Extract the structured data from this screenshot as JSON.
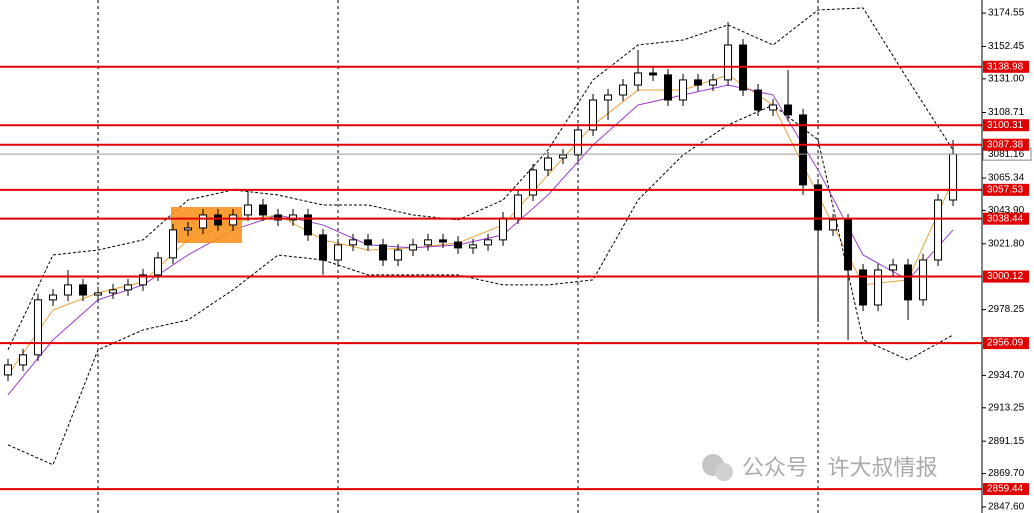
{
  "chart_data": {
    "type": "candlestick",
    "ylim": [
      2843.6,
      3183.2
    ],
    "xlim": [
      -0.533,
      64.93
    ],
    "xgrid": [
      6,
      22,
      38,
      54
    ],
    "yticks": [
      3174.55,
      3152.45,
      {
        "value": 3131,
        "label": "3131.00"
      },
      3108.71,
      3065.34,
      {
        "value": 3043.9,
        "label": "3043.90"
      },
      {
        "value": 3021.8,
        "label": "3021.80"
      },
      2978.25,
      {
        "value": 2934.7,
        "label": "2934.70"
      },
      2913.25,
      2891.15,
      {
        "value": 2869.7,
        "label": "2869.70"
      },
      {
        "value": 2847.6,
        "label": "2847.60"
      }
    ],
    "up_color": "#ffffff",
    "down_color": "#000000",
    "open": [
      2935,
      2941.6,
      2948.3,
      2984.7,
      2987.9,
      2994.6,
      2987.9,
      2989.3,
      2991.3,
      2994.6,
      3001.2,
      3012.5,
      3031.0,
      3032.3,
      3040.9,
      3034.3,
      3040.9,
      3047.5,
      3040.9,
      3037.6,
      3040.9,
      3027.7,
      3011.1,
      3021.1,
      3024.4,
      3021.1,
      3011.1,
      3017.7,
      3021.1,
      3024.4,
      3023.0,
      3019.1,
      3021.1,
      3024.4,
      3038.9,
      3054.1,
      3070.7,
      3078.6,
      3080.6,
      3097.2,
      3117.0,
      3120.3,
      3126.9,
      3134.9,
      3133.6,
      3117.0,
      3130.3,
      3126.9,
      3130.3,
      3153.4,
      3123.6,
      3110.4,
      3113.7,
      3107.1,
      3060.8,
      3031.0,
      3037.6,
      3004.5,
      2981.3,
      3004.5,
      3007.8,
      2984.7,
      3011.1,
      3050.8
    ],
    "high": [
      2945.6,
      2952.3,
      2988.7,
      2991.9,
      3004.5,
      2998.6,
      2993.3,
      2995.3,
      2998.6,
      3005.2,
      3016.5,
      3035.0,
      3036.3,
      3044.9,
      3044.9,
      3044.9,
      3057.5,
      3051.5,
      3044.9,
      3044.9,
      3044.9,
      3031.7,
      3025.1,
      3028.4,
      3028.4,
      3025.1,
      3021.7,
      3025.1,
      3028.4,
      3028.4,
      3027.0,
      3025.1,
      3028.4,
      3042.9,
      3058.1,
      3074.7,
      3082.6,
      3084.6,
      3101.2,
      3121.0,
      3124.3,
      3130.9,
      3150.1,
      3138.9,
      3137.6,
      3134.3,
      3134.3,
      3134.3,
      3168.6,
      3157.4,
      3127.6,
      3117.7,
      3136.9,
      3111.1,
      3064.8,
      3041.6,
      3041.6,
      3008.5,
      3008.5,
      3011.8,
      3011.8,
      3015.1,
      3054.8,
      3090.6
    ],
    "low": [
      2931,
      2937.6,
      2944.3,
      2980.7,
      2983.9,
      2983.9,
      2983.9,
      2985.3,
      2987.3,
      2990.6,
      2997.2,
      3008.5,
      3027.0,
      3028.3,
      3030.3,
      3030.3,
      3036.9,
      3036.9,
      3033.6,
      3033.6,
      3023.7,
      3001.2,
      3007.1,
      3017.1,
      3017.1,
      3007.1,
      3007.1,
      3013.7,
      3017.1,
      3019.0,
      3015.1,
      3015.1,
      3017.1,
      3020.4,
      3034.9,
      3050.1,
      3066.7,
      3074.6,
      3076.6,
      3093.2,
      3103.8,
      3116.3,
      3122.9,
      3129.6,
      3113.0,
      3113.0,
      3122.9,
      3122.9,
      3126.3,
      3119.6,
      3106.4,
      3106.4,
      3103.1,
      3054.1,
      2970.0,
      3027.0,
      2958.2,
      2977.3,
      2977.3,
      3000.5,
      2971.4,
      2980.7,
      3007.1,
      3046.8
    ],
    "close": [
      2941.6,
      2948.3,
      2984.7,
      2987.9,
      2994.6,
      2987.9,
      2989.3,
      2991.3,
      2994.6,
      3001.2,
      3012.5,
      3031.0,
      3032.3,
      3040.9,
      3034.3,
      3040.9,
      3047.5,
      3040.9,
      3037.6,
      3040.9,
      3027.7,
      3011.1,
      3021.1,
      3024.4,
      3021.1,
      3011.1,
      3017.7,
      3021.1,
      3024.4,
      3023.0,
      3019.1,
      3021.1,
      3024.4,
      3038.9,
      3054.1,
      3070.7,
      3078.6,
      3080.6,
      3097.2,
      3117.0,
      3120.3,
      3126.9,
      3134.9,
      3133.6,
      3117.0,
      3130.3,
      3126.9,
      3130.3,
      3153.4,
      3123.6,
      3110.4,
      3113.7,
      3107.1,
      3060.8,
      3031.0,
      3037.6,
      3004.5,
      2981.3,
      3004.5,
      3007.8,
      2984.7,
      3011.1,
      3050.8,
      3081.16
    ],
    "series": [
      {
        "color": "#e8a23c",
        "dash": false,
        "x": [
          0,
          3,
          6,
          9,
          12,
          15,
          18,
          21,
          24,
          27,
          30,
          33,
          36,
          39,
          42,
          45,
          48,
          51,
          54,
          57,
          60,
          63
        ],
        "values": [
          2935.0,
          2978.0,
          2989.3,
          2996.6,
          3024.4,
          3036.3,
          3040.9,
          3024.4,
          3017.7,
          3019.1,
          3022.4,
          3034.3,
          3067.4,
          3100.5,
          3123.6,
          3123.6,
          3133.6,
          3113.7,
          3054.1,
          2994.6,
          2997.9,
          3064.1
        ]
      },
      {
        "color": "#9b3fd0",
        "dash": false,
        "x": [
          0,
          3,
          6,
          9,
          12,
          15,
          18,
          21,
          24,
          27,
          30,
          33,
          36,
          39,
          42,
          45,
          48,
          51,
          54,
          57,
          60,
          63
        ],
        "values": [
          2921.8,
          2958.2,
          2984.7,
          2994.6,
          3014.4,
          3031.0,
          3040.9,
          3034.3,
          3021.1,
          3019.1,
          3021.1,
          3027.7,
          3054.1,
          3087.2,
          3113.7,
          3120.3,
          3126.9,
          3120.3,
          3070.7,
          3014.4,
          2997.9,
          3031.0
        ]
      },
      {
        "color": "#000000",
        "dash": true,
        "x": [
          0,
          3,
          6,
          9,
          12,
          15,
          18,
          21,
          24,
          27,
          30,
          33,
          36,
          39,
          42,
          45,
          48,
          51,
          54,
          57,
          60,
          63
        ],
        "values": [
          2951.6,
          3014.4,
          3017.7,
          3024.4,
          3050.8,
          3057.5,
          3054.1,
          3047.5,
          3047.5,
          3040.9,
          3037.6,
          3050.8,
          3083.9,
          3130.3,
          3153.4,
          3156.7,
          3166.7,
          3153.4,
          3176.6,
          3177.9,
          3130.3,
          3083.9
        ]
      },
      {
        "color": "#000000",
        "dash": true,
        "x": [
          0,
          3,
          6,
          9,
          12,
          15,
          18,
          21,
          24,
          27,
          30,
          33,
          36,
          39,
          42,
          45,
          48,
          51,
          54,
          57,
          60,
          63
        ],
        "values": [
          2888.7,
          2875.5,
          2951.6,
          2964.8,
          2971.4,
          2991.3,
          3014.4,
          3011.1,
          3001.2,
          3001.2,
          3001.2,
          2994.6,
          2994.6,
          2997.9,
          3050.8,
          3080.6,
          3100.5,
          3113.7,
          3090.6,
          2958.2,
          2944.9,
          2961.5
        ]
      }
    ],
    "levels": [
      3138.98,
      3100.31,
      3087.38,
      3057.53,
      3038.44,
      3000.12,
      2956.09,
      2859.44
    ],
    "level_color": "#e00000",
    "last_price": 3081.16,
    "watermark": "公众号 · 许大叔情报"
  }
}
